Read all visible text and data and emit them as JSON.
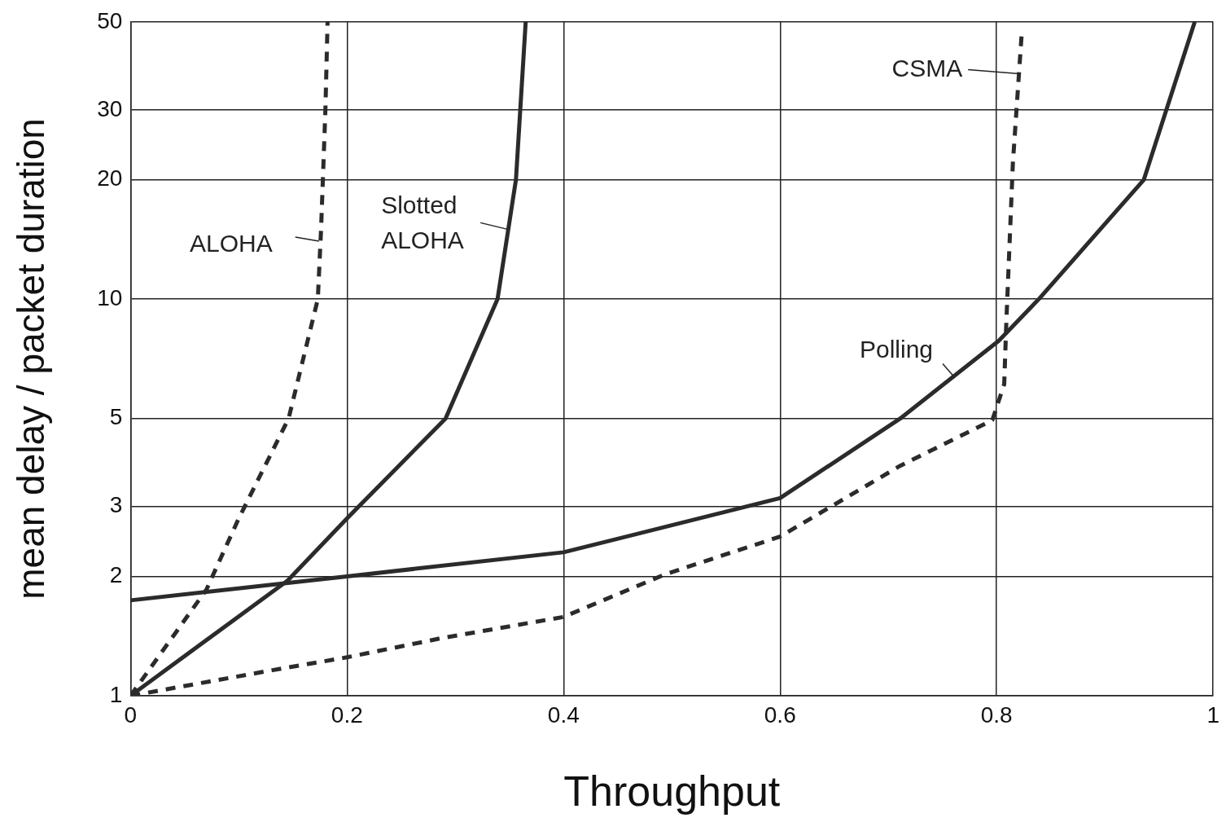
{
  "chart_data": {
    "type": "line",
    "xlabel": "Throughput",
    "ylabel": "mean delay / packet duration",
    "log": "y",
    "grid": true,
    "legend": false,
    "marker": "none",
    "xlim": [
      0,
      1
    ],
    "xticks": [
      0,
      0.2,
      0.4,
      0.6,
      0.8,
      1
    ],
    "ylim": [
      1,
      50
    ],
    "yticks": [
      1,
      2,
      3,
      5,
      10,
      20,
      30,
      50
    ],
    "annotations": [
      {
        "text": "ALOHA",
        "x": 0.174,
        "y": 14
      },
      {
        "text": "Slotted ALOHA",
        "x": 0.348,
        "y": 15
      },
      {
        "text": "CSMA",
        "x": 0.821,
        "y": 37
      },
      {
        "text": "Polling",
        "x": 0.76,
        "y": 6.4
      }
    ],
    "series": [
      {
        "color": "#2b2b2b",
        "line_style": "dashed",
        "x": [
          0,
          0.07,
          0.1,
          0.146,
          0.173,
          0.176,
          0.18,
          0.182
        ],
        "values": [
          1,
          1.85,
          2.8,
          5,
          10,
          15,
          30,
          50
        ]
      },
      {
        "color": "#2b2b2b",
        "line_style": "solid",
        "x": [
          0,
          0.145,
          0.2,
          0.291,
          0.339,
          0.356,
          0.365
        ],
        "values": [
          1,
          1.95,
          2.8,
          5,
          10,
          20,
          50
        ]
      },
      {
        "color": "#2b2b2b",
        "line_style": "dashed",
        "x": [
          0,
          0.131,
          0.2,
          0.289,
          0.4,
          0.493,
          0.6,
          0.711,
          0.796,
          0.807,
          0.809,
          0.815,
          0.823
        ],
        "values": [
          1,
          1.16,
          1.25,
          1.4,
          1.58,
          2.02,
          2.52,
          3.8,
          4.95,
          6.1,
          8.8,
          22,
          46
        ]
      },
      {
        "color": "#2b2b2b",
        "line_style": "solid",
        "x": [
          0,
          0.2,
          0.4,
          0.6,
          0.711,
          0.802,
          0.839,
          0.936,
          0.983
        ],
        "values": [
          1.74,
          2,
          2.3,
          3.15,
          5,
          7.85,
          10,
          20,
          50
        ]
      }
    ]
  }
}
